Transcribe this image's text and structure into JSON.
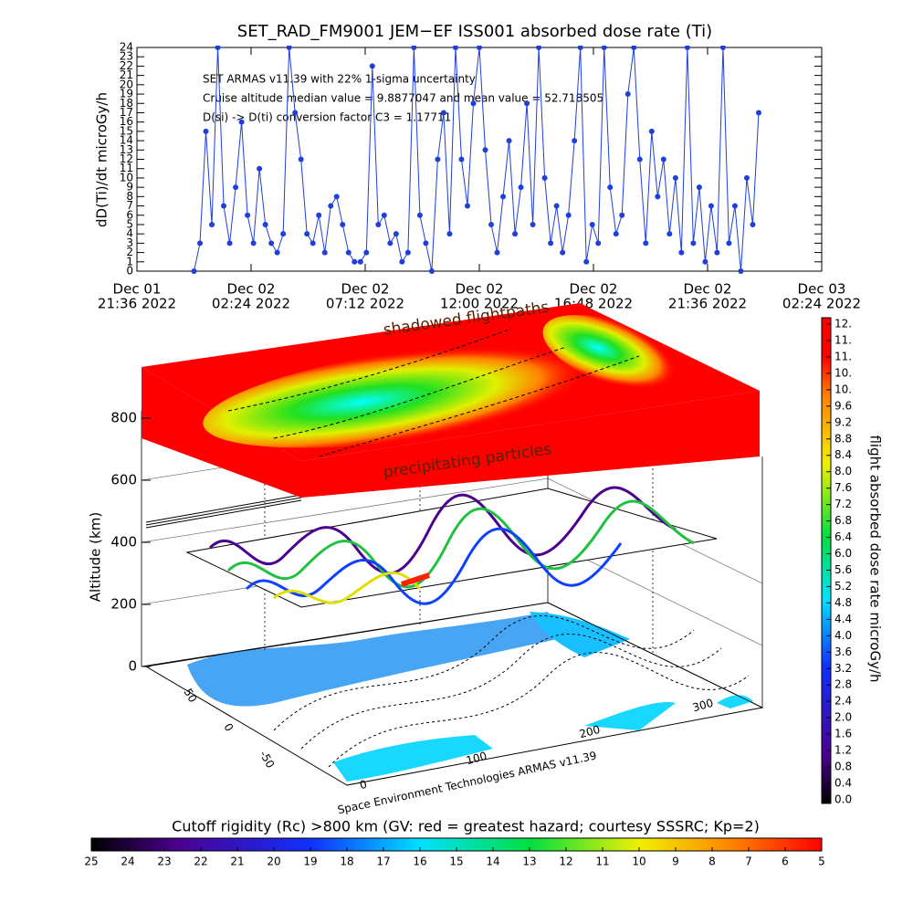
{
  "chart_data": {
    "type": "line",
    "title": "SET_RAD_FM9001  JEM−EF ISS001 absorbed dose rate (Ti)",
    "ylabel": "dD(Ti)/dt microGy/h",
    "annotations": [
      "SET ARMAS v11.39 with 22% 1-sigma uncertainty",
      "Cruise altitude median value = 9.8877047 and mean value = 52.718505",
      "D(si) -> D(ti) conversion factor C3 = 1.17711"
    ],
    "color": "#1f3fd8",
    "x": [
      "2022-12-02T00:00",
      "2022-12-02T00:15",
      "2022-12-02T00:30",
      "2022-12-02T00:45",
      "2022-12-02T01:00",
      "2022-12-02T01:15",
      "2022-12-02T01:30",
      "2022-12-02T01:45",
      "2022-12-02T02:00",
      "2022-12-02T02:15",
      "2022-12-02T02:30",
      "2022-12-02T02:45",
      "2022-12-02T03:00",
      "2022-12-02T03:15",
      "2022-12-02T03:30",
      "2022-12-02T03:45",
      "2022-12-02T04:00",
      "2022-12-02T04:15",
      "2022-12-02T04:30",
      "2022-12-02T04:45",
      "2022-12-02T05:00",
      "2022-12-02T05:15",
      "2022-12-02T05:30",
      "2022-12-02T05:45",
      "2022-12-02T06:00",
      "2022-12-02T06:15",
      "2022-12-02T06:30",
      "2022-12-02T06:45",
      "2022-12-02T07:00",
      "2022-12-02T07:15",
      "2022-12-02T07:30",
      "2022-12-02T07:45",
      "2022-12-02T08:00",
      "2022-12-02T08:15",
      "2022-12-02T08:30",
      "2022-12-02T08:45",
      "2022-12-02T09:00",
      "2022-12-02T09:15",
      "2022-12-02T09:30",
      "2022-12-02T09:45",
      "2022-12-02T10:00",
      "2022-12-02T10:15",
      "2022-12-02T10:30",
      "2022-12-02T10:45",
      "2022-12-02T11:00",
      "2022-12-02T11:15",
      "2022-12-02T11:30",
      "2022-12-02T11:45",
      "2022-12-02T12:00",
      "2022-12-02T12:15",
      "2022-12-02T12:30",
      "2022-12-02T12:45",
      "2022-12-02T13:00",
      "2022-12-02T13:15",
      "2022-12-02T13:30",
      "2022-12-02T13:45",
      "2022-12-02T14:00",
      "2022-12-02T14:15",
      "2022-12-02T14:30",
      "2022-12-02T14:45",
      "2022-12-02T15:00",
      "2022-12-02T15:15",
      "2022-12-02T15:30",
      "2022-12-02T15:45",
      "2022-12-02T16:00",
      "2022-12-02T16:15",
      "2022-12-02T16:30",
      "2022-12-02T16:45",
      "2022-12-02T17:00",
      "2022-12-02T17:15",
      "2022-12-02T17:30",
      "2022-12-02T17:45",
      "2022-12-02T18:00",
      "2022-12-02T18:15",
      "2022-12-02T18:30",
      "2022-12-02T18:45",
      "2022-12-02T19:00",
      "2022-12-02T19:15",
      "2022-12-02T19:30",
      "2022-12-02T19:45",
      "2022-12-02T20:00",
      "2022-12-02T20:15",
      "2022-12-02T20:30",
      "2022-12-02T20:45",
      "2022-12-02T21:00",
      "2022-12-02T21:15",
      "2022-12-02T21:30",
      "2022-12-02T21:45",
      "2022-12-02T22:00",
      "2022-12-02T22:15",
      "2022-12-02T22:30",
      "2022-12-02T22:45",
      "2022-12-02T23:00",
      "2022-12-02T23:15",
      "2022-12-02T23:30",
      "2022-12-02T23:45"
    ],
    "values": [
      0,
      3,
      15,
      5,
      24,
      7,
      3,
      9,
      16,
      6,
      3,
      11,
      5,
      3,
      2,
      4,
      24,
      17,
      12,
      4,
      3,
      6,
      2,
      7,
      8,
      5,
      2,
      1,
      1,
      2,
      22,
      5,
      6,
      3,
      4,
      1,
      2,
      24,
      6,
      3,
      0,
      12,
      17,
      4,
      24,
      12,
      7,
      18,
      24,
      13,
      5,
      2,
      8,
      14,
      4,
      9,
      18,
      5,
      24,
      10,
      3,
      7,
      2,
      6,
      14,
      24,
      1,
      5,
      3,
      24,
      9,
      4,
      6,
      19,
      24,
      12,
      3,
      15,
      8,
      12,
      4,
      10,
      2,
      24,
      3,
      9,
      1,
      7,
      2,
      24,
      3,
      7,
      0,
      10,
      5,
      17
    ],
    "xlim": [
      "2022-12-01T21:36",
      "2022-12-03T02:24"
    ],
    "xticks": [
      {
        "value": "2022-12-01T21:36",
        "label": [
          "Dec 01",
          "21:36 2022"
        ]
      },
      {
        "value": "2022-12-02T02:24",
        "label": [
          "Dec 02",
          "02:24 2022"
        ]
      },
      {
        "value": "2022-12-02T07:12",
        "label": [
          "Dec 02",
          "07:12 2022"
        ]
      },
      {
        "value": "2022-12-02T12:00",
        "label": [
          "Dec 02",
          "12:00 2022"
        ]
      },
      {
        "value": "2022-12-02T16:48",
        "label": [
          "Dec 02",
          "16:48 2022"
        ]
      },
      {
        "value": "2022-12-02T21:36",
        "label": [
          "Dec 02",
          "21:36 2022"
        ]
      },
      {
        "value": "2022-12-03T02:24",
        "label": [
          "Dec 03",
          "02:24 2022"
        ]
      }
    ],
    "ylim": [
      0,
      24
    ],
    "yticks": [
      0,
      1,
      2,
      3,
      4,
      5,
      6,
      7,
      8,
      9,
      10,
      11,
      12,
      13,
      14,
      15,
      16,
      17,
      18,
      19,
      20,
      21,
      22,
      23,
      24
    ]
  },
  "scene": {
    "labels": [
      "shadowed flightpaths",
      "precipitating particles"
    ],
    "altitude_label": "Altitude (km)",
    "altitude_ticks": [
      0,
      200,
      400,
      600,
      800
    ],
    "lat_ticks": [
      -50,
      0,
      50
    ],
    "lon_ticks": [
      0,
      100,
      200,
      300
    ],
    "credit": "Space Environment Technologies ARMAS v11.39"
  },
  "dose_colorbar": {
    "label": "flight absorbed dose rate microGy/h",
    "lim": [
      0,
      11.6
    ],
    "ticks": [
      {
        "value": 0,
        "label": "0.0"
      },
      {
        "value": 0.4,
        "label": "0.4"
      },
      {
        "value": 0.8,
        "label": "0.8"
      },
      {
        "value": 1.2,
        "label": "1.2"
      },
      {
        "value": 1.6,
        "label": "1.6"
      },
      {
        "value": 2,
        "label": "2.0"
      },
      {
        "value": 2.4,
        "label": "2.4"
      },
      {
        "value": 2.8,
        "label": "2.8"
      },
      {
        "value": 3.2,
        "label": "3.2"
      },
      {
        "value": 3.6,
        "label": "3.6"
      },
      {
        "value": 4,
        "label": "4.0"
      },
      {
        "value": 4.4,
        "label": "4.4"
      },
      {
        "value": 4.8,
        "label": "4.8"
      },
      {
        "value": 5.2,
        "label": "5.2"
      },
      {
        "value": 5.6,
        "label": "5.6"
      },
      {
        "value": 6,
        "label": "6.0"
      },
      {
        "value": 6.4,
        "label": "6.4"
      },
      {
        "value": 6.8,
        "label": "6.8"
      },
      {
        "value": 7.2,
        "label": "7.2"
      },
      {
        "value": 7.6,
        "label": "7.6"
      },
      {
        "value": 8,
        "label": "8.0"
      },
      {
        "value": 8.4,
        "label": "8.4"
      },
      {
        "value": 8.8,
        "label": "8.8"
      },
      {
        "value": 9.2,
        "label": "9.2"
      },
      {
        "value": 9.6,
        "label": "9.6"
      },
      {
        "value": 10,
        "label": "10."
      },
      {
        "value": 10.4,
        "label": "10."
      },
      {
        "value": 10.8,
        "label": "11."
      },
      {
        "value": 11.2,
        "label": "11."
      },
      {
        "value": 11.6,
        "label": "12."
      }
    ]
  },
  "rigidity_colorbar": {
    "label": "Cutoff rigidity (Rc) >800 km (GV: red = greatest hazard; courtesy SSSRC; Kp=2)",
    "lim": [
      25,
      5
    ],
    "ticks": [
      25,
      24,
      23,
      22,
      21,
      20,
      19,
      18,
      17,
      16,
      15,
      14,
      13,
      12,
      11,
      10,
      9,
      8,
      7,
      6,
      5
    ]
  }
}
